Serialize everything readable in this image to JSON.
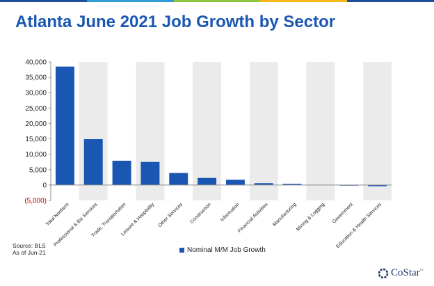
{
  "title": "Atlanta June 2021 Job Growth by Sector",
  "source_lines": [
    "Source: BLS",
    "As of Jun-21"
  ],
  "logo": {
    "name": "CoStar",
    "tm": "™"
  },
  "colors": {
    "bar": "#1a57b3",
    "title": "#1a57b3",
    "negative_tick": "#c00000",
    "band": "#ebebeb",
    "topbar": [
      "#1f4e9b",
      "#2e9bd6",
      "#8dc63f",
      "#f7b718",
      "#1f4e9b"
    ]
  },
  "chart_data": {
    "type": "bar",
    "categories": [
      "Total Nonfarm",
      "Professional & Biz Services",
      "Trade, Transportation",
      "Leisure & Hospitality",
      "Other Services",
      "Construction",
      "Information",
      "Financial Activities",
      "Manufacturing",
      "Mining & Logging",
      "Government",
      "Education & Health Services"
    ],
    "series": [
      {
        "name": "Nominal M/M Job Growth",
        "values": [
          38500,
          14900,
          7900,
          7500,
          3900,
          2300,
          1700,
          600,
          400,
          0,
          -200,
          -400
        ]
      }
    ],
    "ylim": [
      -5000,
      40000
    ],
    "yticks": [
      -5000,
      0,
      5000,
      10000,
      15000,
      20000,
      25000,
      30000,
      35000,
      40000
    ],
    "ytick_labels": [
      "(5,000)",
      "0",
      "5,000",
      "10,000",
      "15,000",
      "20,000",
      "25,000",
      "30,000",
      "35,000",
      "40,000"
    ],
    "legend": "bottom",
    "alternating_bands": true
  }
}
